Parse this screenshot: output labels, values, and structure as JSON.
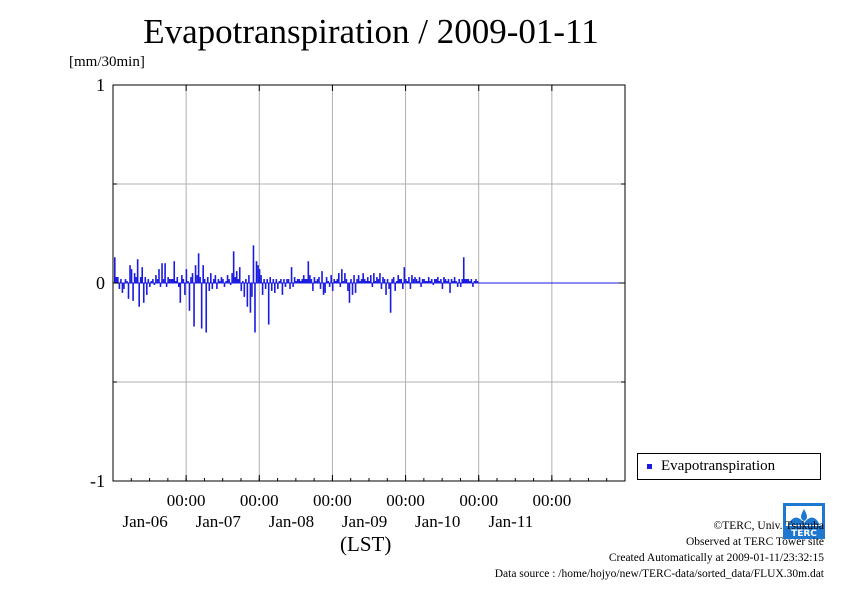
{
  "title": "Evapotranspiration / 2009-01-11",
  "unit_label": "[mm/30min]",
  "legend": {
    "label": "Evapotranspiration",
    "color": "#1a1ae0"
  },
  "credits": {
    "line1": "©TERC, Univ. Tsukuba",
    "line2": "Observed at TERC Tower site",
    "line3": "Created Automatically at 2009-01-11/23:32:15",
    "line4": "Data source : /home/hojyo/new/TERC-data/sorted_data/FLUX.30m.dat"
  },
  "logo": {
    "text": "TERC",
    "color": "#1e78d0"
  },
  "chart_data": {
    "type": "bar",
    "title": "Evapotranspiration / 2009-01-11",
    "ylabel": "[mm/30min]",
    "xlabel": "(LST)",
    "ylim": [
      -1,
      1
    ],
    "yticks": [
      -1,
      0,
      1
    ],
    "grid": true,
    "legend_position": "right-bottom",
    "xlim": [
      "2009-01-05 00:00",
      "2009-01-12 00:00"
    ],
    "x_ticks": [
      {
        "at": "2009-01-06 00:00",
        "time": "00:00",
        "date": "Jan-06"
      },
      {
        "at": "2009-01-07 00:00",
        "time": "00:00",
        "date": "Jan-07"
      },
      {
        "at": "2009-01-08 00:00",
        "time": "00:00",
        "date": "Jan-08"
      },
      {
        "at": "2009-01-09 00:00",
        "time": "00:00",
        "date": "Jan-09"
      },
      {
        "at": "2009-01-10 00:00",
        "time": "00:00",
        "date": "Jan-10"
      },
      {
        "at": "2009-01-11 00:00",
        "time": "00:00",
        "date": "Jan-11"
      }
    ],
    "series": [
      {
        "name": "Evapotranspiration",
        "color": "#1a1ae0",
        "interval": "30min",
        "start": "2009-01-05 00:00",
        "values": [
          0.13,
          0.03,
          0.03,
          -0.03,
          0.02,
          -0.05,
          -0.03,
          0.02,
          0.01,
          -0.08,
          0.09,
          0.07,
          -0.09,
          0.05,
          0.03,
          0.12,
          -0.12,
          0.03,
          0.08,
          -0.1,
          0.03,
          -0.06,
          0.02,
          -0.02,
          0.01,
          0.02,
          -0.01,
          0.04,
          0.02,
          0.07,
          -0.02,
          0.1,
          0.02,
          0.1,
          -0.02,
          0.03,
          0.02,
          0.02,
          0.02,
          0.11,
          0.01,
          0.03,
          -0.02,
          -0.1,
          0.04,
          0.02,
          -0.06,
          0.07,
          0.01,
          -0.14,
          0.03,
          0.05,
          -0.22,
          0.09,
          0.04,
          0.15,
          0.03,
          -0.23,
          0.09,
          0.02,
          -0.25,
          0.03,
          -0.04,
          0.05,
          -0.03,
          0.02,
          0.04,
          -0.03,
          0.02,
          0.01,
          0.03,
          0.02,
          -0.02,
          0.01,
          0.04,
          0.02,
          -0.01,
          0.05,
          0.16,
          0.03,
          0.06,
          0.02,
          0.08,
          -0.04,
          0.01,
          -0.07,
          0.02,
          -0.12,
          0.04,
          -0.15,
          -0.07,
          0.19,
          -0.25,
          0.11,
          0.09,
          0.07,
          0.04,
          -0.06,
          0.02,
          -0.03,
          0.02,
          -0.21,
          0.03,
          -0.04,
          0.02,
          -0.05,
          0.02,
          -0.03,
          0.01,
          0.02,
          -0.06,
          0.02,
          -0.02,
          0.02,
          0.02,
          -0.03,
          0.08,
          -0.02,
          0.03,
          0.01,
          0.02,
          0.02,
          0.01,
          0.02,
          0.04,
          0.02,
          0.02,
          0.11,
          0.04,
          0.02,
          -0.04,
          0.03,
          0.01,
          0.02,
          0.03,
          -0.03,
          0.06,
          -0.06,
          -0.05,
          0.03,
          0.01,
          -0.02,
          0.04,
          -0.04,
          0.02,
          0.01,
          0.02,
          0.05,
          -0.02,
          0.07,
          0.01,
          0.05,
          0.02,
          -0.04,
          -0.1,
          0.02,
          -0.06,
          0.04,
          -0.05,
          0.02,
          0.04,
          0.01,
          0.02,
          0.05,
          0.02,
          0.01,
          0.03,
          0.01,
          0.04,
          -0.02,
          0.05,
          0.01,
          0.03,
          0.02,
          0.05,
          -0.03,
          0.03,
          0.02,
          -0.06,
          0.02,
          -0.03,
          -0.15,
          0.02,
          0.03,
          -0.04,
          0.01,
          0.04,
          0.02,
          0.02,
          -0.03,
          0.08,
          0.02,
          0.01,
          0.03,
          -0.03,
          0.04,
          0.02,
          0.03,
          0.02,
          0.01,
          0.03,
          -0.02,
          0.02,
          0.02,
          0.01,
          0.01,
          0.03,
          0.01,
          0.02,
          -0.01,
          0.02,
          0.02,
          0.03,
          0.01,
          0.02,
          -0.03,
          0.03,
          0.02,
          0.01,
          0.02,
          -0.05,
          0.02,
          0.01,
          0.03,
          0.01,
          -0.02,
          0.02,
          -0.02,
          0.02,
          0.13,
          0.02,
          0.02,
          0.02,
          0.01,
          0.02,
          -0.02,
          0.01,
          0.02,
          0.01
        ]
      }
    ]
  }
}
